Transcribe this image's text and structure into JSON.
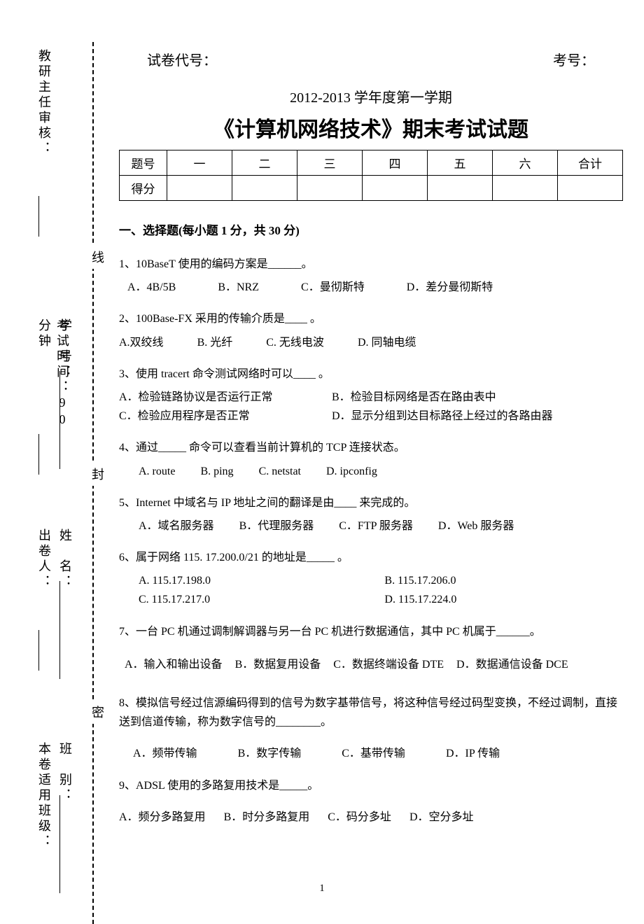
{
  "header": {
    "paper_code_label": "试卷代号：",
    "exam_no_label": "考号：",
    "semester": "2012-2013 学年度第一学期",
    "title": "《计算机网络技术》期末考试试题"
  },
  "sidebar": {
    "reviewer_label": "教研主任审核：",
    "line_label_1": "线",
    "exam_time_label": "考试时间：90 分钟",
    "student_no_label": "学　号：",
    "seal_label_2": "封",
    "author_label": "出卷人：",
    "name_label": "姓　名：",
    "seal_label_3": "密",
    "class_label": "本卷适用班级：",
    "class_type_label": "班　别："
  },
  "score_table": {
    "row1": [
      "题号",
      "一",
      "二",
      "三",
      "四",
      "五",
      "六",
      "合计"
    ],
    "row2_label": "得分"
  },
  "section1_title": "一、选择题(每小题 1 分，共 30 分)",
  "questions": [
    {
      "text": "1、10BaseT 使用的编码方案是______。",
      "opts": [
        "A．4B/5B",
        "B．NRZ",
        "C．曼彻斯特",
        "D．差分曼彻斯特"
      ],
      "layout": "row"
    },
    {
      "text": "2、100Base-FX  采用的传输介质是____ 。",
      "opts": [
        "A.双绞线",
        "B. 光纤",
        "C. 无线电波",
        "D. 同轴电缆"
      ],
      "layout": "row-tight"
    },
    {
      "text": "3、使用 tracert 命令测试网络时可以____ 。",
      "opts": [
        "A．检验链路协议是否运行正常",
        "B．检验目标网络是否在路由表中",
        "C．检验应用程序是否正常",
        "D．显示分组到达目标路径上经过的各路由器"
      ],
      "layout": "2col-tight"
    },
    {
      "text": "4、通过_____ 命令可以查看当前计算机的 TCP 连接状态。",
      "opts": [
        "A. route",
        "B. ping",
        "C. netstat",
        "D. ipconfig"
      ],
      "layout": "row-indent"
    },
    {
      "text": "5、Internet 中域名与 IP 地址之间的翻译是由____ 来完成的。",
      "opts": [
        "A．域名服务器",
        "B．代理服务器",
        "C．FTP 服务器",
        "D．Web 服务器"
      ],
      "layout": "row-indent"
    },
    {
      "text": "6、属于网络 115. 17.200.0/21  的地址是_____  。",
      "opts": [
        "A. 115.17.198.0",
        "B. 115.17.206.0",
        "C. 115.17.217.0",
        "D. 115.17.224.0"
      ],
      "layout": "2col"
    },
    {
      "text": "7、一台 PC 机通过调制解调器与另一台 PC 机进行数据通信，其中 PC 机属于______。",
      "opts": [
        "A．输入和输出设备",
        "B．数据复用设备",
        "C．数据终端设备 DTE",
        "D．数据通信设备 DCE"
      ],
      "layout": "row-spaced"
    },
    {
      "text": "8、模拟信号经过信源编码得到的信号为数字基带信号，将这种信号经过码型变换，不经过调制，直接送到信道传输，称为数字信号的________。",
      "opts": [
        "A．频带传输",
        "B．数字传输",
        "C．基带传输",
        "D．IP 传输"
      ],
      "layout": "row-spaced2"
    },
    {
      "text": "9、ADSL 使用的多路复用技术是_____。",
      "opts": [
        "A．频分多路复用",
        "B．时分多路复用",
        "C．码分多址",
        "D．空分多址"
      ],
      "layout": "row-spaced3"
    }
  ],
  "page_number": "1"
}
